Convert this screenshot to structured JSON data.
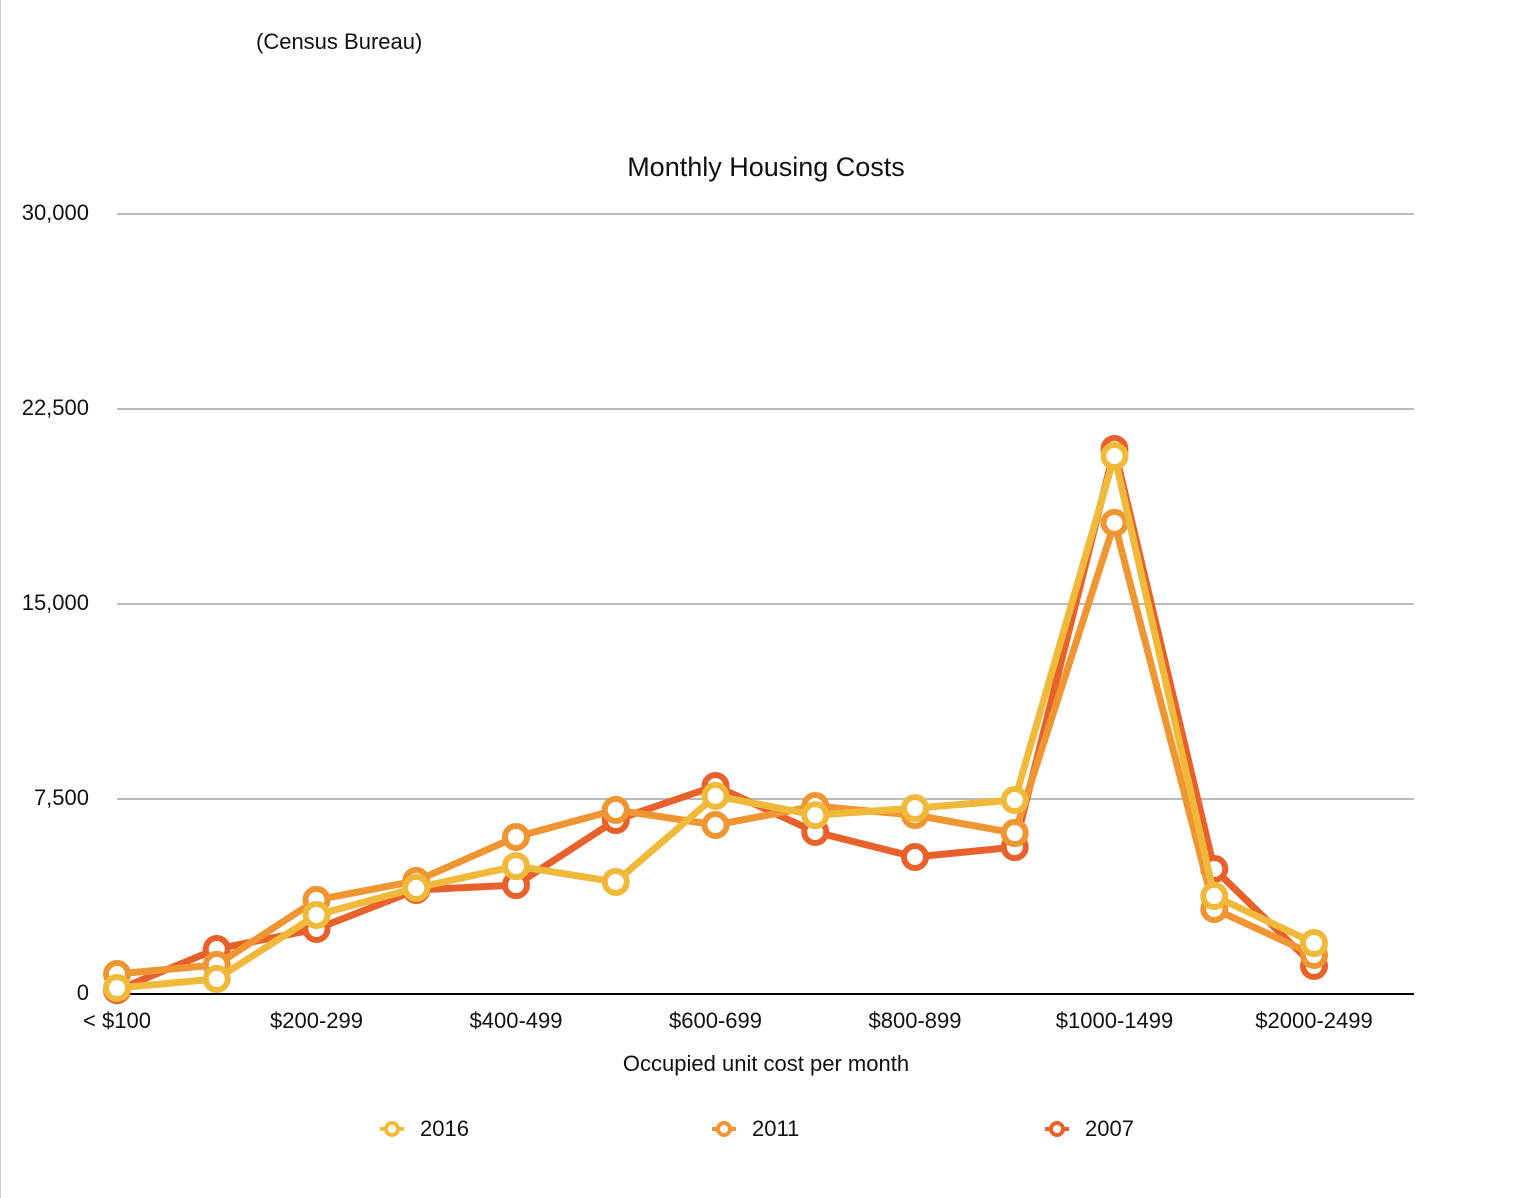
{
  "source": "(Census Bureau)",
  "chart_data": {
    "type": "line",
    "title": "Monthly Housing Costs",
    "x_label": "Occupied unit cost per month",
    "categories": [
      "< $100",
      null,
      "$200-299",
      null,
      "$400-499",
      null,
      "$600-699",
      null,
      "$800-899",
      null,
      "$1000-1499",
      null,
      "$2000-2499"
    ],
    "series": [
      {
        "name": "2016",
        "color": "#f0b93a",
        "values": [
          230,
          580,
          3040,
          4080,
          4920,
          4310,
          7620,
          6880,
          7150,
          7460,
          20690,
          3770,
          1960
        ]
      },
      {
        "name": "2011",
        "color": "#ef9633",
        "values": [
          770,
          1120,
          3620,
          4350,
          6040,
          7080,
          6500,
          7230,
          6880,
          6190,
          18120,
          3270,
          1500
        ]
      },
      {
        "name": "2007",
        "color": "#e9612a",
        "values": [
          150,
          1730,
          2500,
          4000,
          4190,
          6690,
          8000,
          6230,
          5270,
          5650,
          20960,
          4810,
          1080
        ]
      }
    ],
    "ylim": [
      0,
      30000
    ],
    "yticks": [
      0,
      {
        "value": 7500,
        "label": "7,500"
      },
      {
        "value": 15000,
        "label": "15,000"
      },
      {
        "value": 22500,
        "label": "22,500"
      },
      {
        "value": 30000,
        "label": "30,000"
      }
    ],
    "grid": true,
    "legend": "bottom"
  }
}
